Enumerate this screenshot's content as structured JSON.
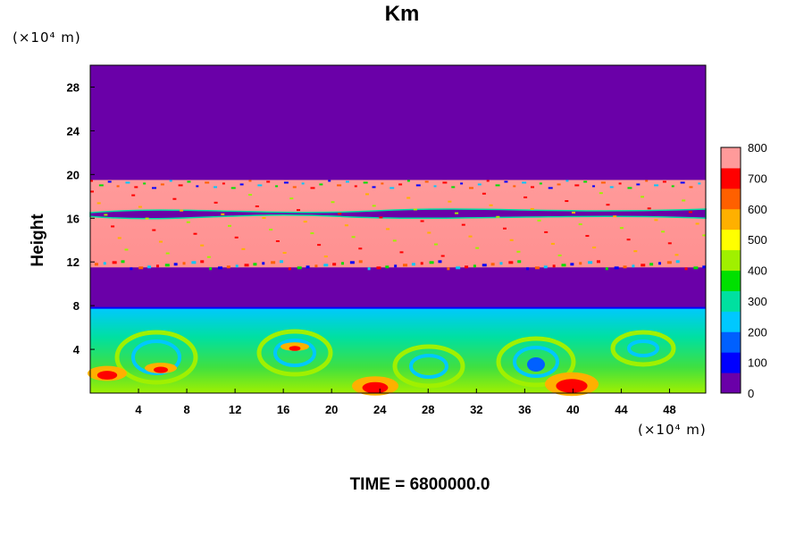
{
  "chart_data": {
    "type": "heatmap",
    "title": "Km",
    "ylabel": "Height",
    "x_unit": "(×10⁴ m)",
    "y_unit": "(×10⁴ m)",
    "xlim": [
      0,
      51
    ],
    "ylim": [
      0,
      30
    ],
    "xticks": [
      4,
      8,
      12,
      16,
      20,
      24,
      28,
      32,
      36,
      40,
      44,
      48
    ],
    "yticks": [
      4,
      8,
      12,
      16,
      20,
      24,
      28
    ],
    "colorbar": {
      "range": [
        0,
        800
      ],
      "ticks": [
        0,
        100,
        200,
        300,
        400,
        500,
        600,
        700,
        800
      ],
      "colors": [
        "#6a00a8",
        "#0000ff",
        "#0060ff",
        "#00c8ff",
        "#00e0a0",
        "#00e000",
        "#a0f000",
        "#ffff00",
        "#ffb000",
        "#ff6000",
        "#ff0000",
        "#ff9a9a"
      ]
    },
    "fields": [
      {
        "name": "upper layer",
        "y_range": [
          11.5,
          19.5
        ],
        "value": 800
      },
      {
        "name": "boundary layer",
        "y_range": [
          0,
          7.8
        ],
        "value": 300
      }
    ],
    "background_value": 0
  },
  "caption": "TIME = 6800000.0"
}
